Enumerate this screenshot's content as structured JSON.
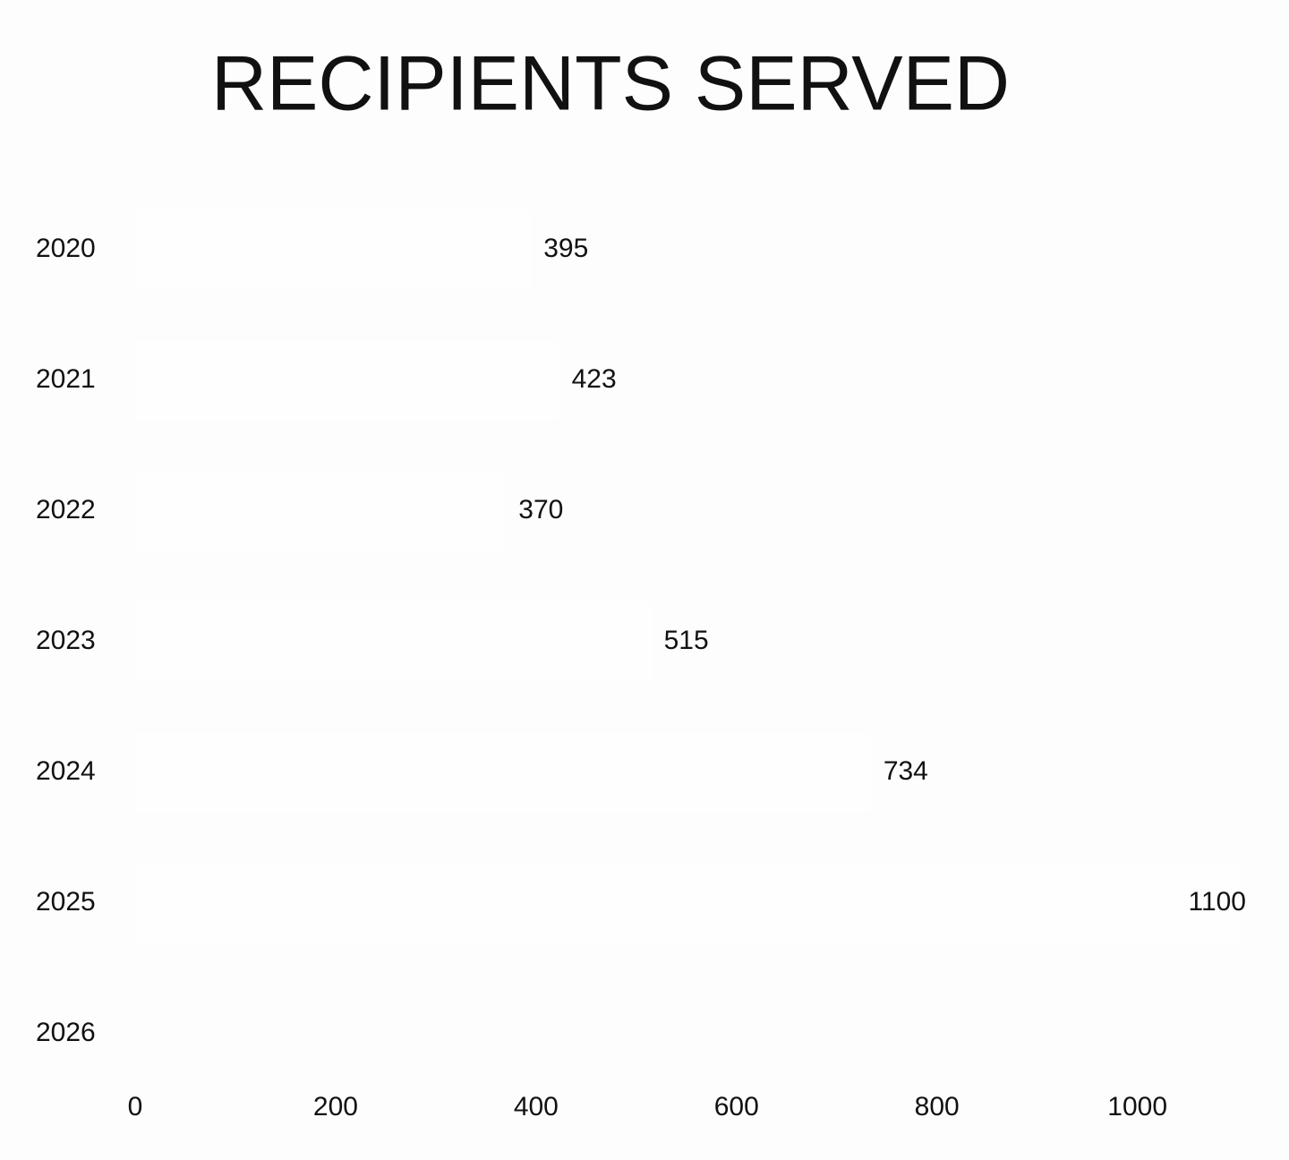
{
  "chart_data": {
    "type": "bar",
    "orientation": "horizontal",
    "title": "RECIPIENTS SERVED",
    "categories": [
      "2020",
      "2021",
      "2022",
      "2023",
      "2024",
      "2025",
      "2026"
    ],
    "values": [
      395,
      423,
      370,
      515,
      734,
      1100,
      null
    ],
    "color": "#fefefe",
    "xlim": [
      0,
      1120
    ],
    "xticks": [
      0,
      200,
      400,
      600,
      800,
      1000
    ],
    "grid": false
  }
}
